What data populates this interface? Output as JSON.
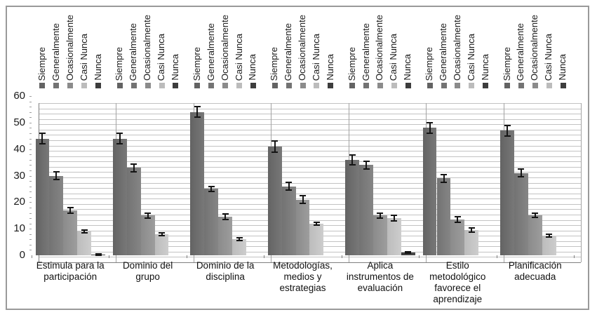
{
  "chart_data": {
    "type": "bar",
    "title": "",
    "xlabel": "",
    "ylabel": "",
    "categories": [
      "Estimula para la\nparticipación",
      "Dominio del\ngrupo",
      "Dominio de la\ndisciplina",
      "Metodologías,\nmedios y\nestrategias",
      "Aplica\ninstrumentos de\nevaluación",
      "Estilo\nmetodológico\nfavorece el\naprendizaje",
      "Planificación\nadecuada"
    ],
    "series": [
      {
        "name": "Siempre",
        "color": "#636363",
        "color_light": "#787878",
        "values": [
          44,
          44,
          54,
          41,
          36,
          48,
          47
        ],
        "errors": [
          2,
          2,
          2,
          2,
          1.8,
          2,
          2
        ]
      },
      {
        "name": "Generalmente",
        "color": "#737373",
        "color_light": "#858585",
        "values": [
          30,
          33,
          25,
          26,
          34,
          29,
          31
        ],
        "errors": [
          1.5,
          1.5,
          1,
          1.5,
          1.5,
          1.5,
          1.5
        ]
      },
      {
        "name": "Ocasionalmente",
        "color": "#8b8b8b",
        "color_light": "#9d9d9d",
        "values": [
          17,
          15,
          14.5,
          21,
          15,
          13.5,
          15
        ],
        "errors": [
          1,
          1,
          1,
          1.5,
          1,
          1,
          0.8
        ]
      },
      {
        "name": "Casi Nunca",
        "color": "#bcbcbc",
        "color_light": "#cdcdcd",
        "values": [
          9,
          8,
          6,
          12,
          14,
          9.5,
          7.5
        ],
        "errors": [
          0.5,
          0.5,
          0.5,
          0.5,
          1,
          0.7,
          0.5
        ]
      },
      {
        "name": "Nunca",
        "color": "#3d3d3d",
        "color_light": "#4b4b4b",
        "values": [
          0.3,
          0,
          0,
          0,
          1,
          0,
          0
        ],
        "errors": [
          0.2,
          0,
          0,
          0,
          0.3,
          0,
          0
        ]
      }
    ],
    "y_axis": {
      "min": 0,
      "max": 60,
      "major_step": 10,
      "minor_step": 2,
      "tick_labels": [
        "0",
        "10",
        "20",
        "30",
        "40",
        "50",
        "60"
      ]
    },
    "error_bars": true,
    "grid": "on",
    "legend": {
      "position": "top",
      "repeated_per_group": true,
      "entries": [
        "Siempre",
        "Generalmente",
        "Ocasionalmente",
        "Casi Nunca",
        "Nunca"
      ]
    }
  },
  "colors": {
    "grid": "#c3c3c3",
    "separator": "#a3a3a3",
    "axis": "#7f7f7f",
    "error_bar": "#141414",
    "frame_border": "#9a9a9a",
    "text": "#1a1a1a",
    "background": "#ffffff"
  }
}
